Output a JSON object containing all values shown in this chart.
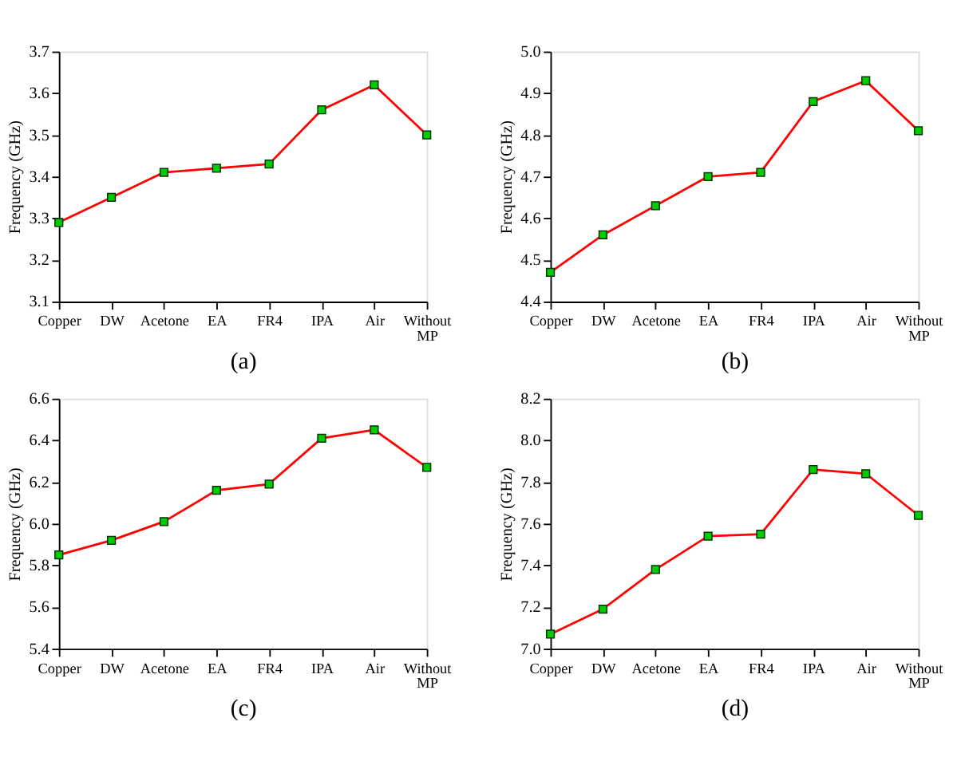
{
  "chart_data": [
    {
      "type": "line",
      "xlabel": "(a)",
      "ylabel": "Frequency (GHz)",
      "categories": [
        "Copper",
        "DW",
        "Acetone",
        "EA",
        "FR4",
        "IPA",
        "Air",
        "Without MP"
      ],
      "series": [
        {
          "color": "#ff0000",
          "values": [
            3.29,
            3.35,
            3.41,
            3.42,
            3.43,
            3.56,
            3.62,
            3.5
          ]
        }
      ],
      "ylim": [
        3.1,
        3.7
      ],
      "yticks": [
        3.1,
        3.2,
        3.3,
        3.4,
        3.5,
        3.6,
        3.7
      ],
      "marker": "square",
      "grid": false
    },
    {
      "type": "line",
      "xlabel": "(b)",
      "ylabel": "Frequency (GHz)",
      "categories": [
        "Copper",
        "DW",
        "Acetone",
        "EA",
        "FR4",
        "IPA",
        "Air",
        "Without MP"
      ],
      "series": [
        {
          "color": "#ff0000",
          "values": [
            4.47,
            4.56,
            4.63,
            4.7,
            4.71,
            4.88,
            4.93,
            4.81
          ]
        }
      ],
      "ylim": [
        4.4,
        5.0
      ],
      "yticks": [
        4.4,
        4.5,
        4.6,
        4.7,
        4.8,
        4.9,
        {
          "value": 5.0,
          "label": "5.0"
        }
      ],
      "marker": "square",
      "grid": false
    },
    {
      "type": "line",
      "xlabel": "(c)",
      "ylabel": "Frequency (GHz)",
      "categories": [
        "Copper",
        "DW",
        "Acetone",
        "EA",
        "FR4",
        "IPA",
        "Air",
        "Without MP"
      ],
      "series": [
        {
          "color": "#ff0000",
          "values": [
            5.85,
            5.92,
            6.01,
            6.16,
            6.19,
            6.41,
            6.45,
            6.27
          ]
        }
      ],
      "ylim": [
        5.4,
        6.6
      ],
      "yticks": [
        5.4,
        5.6,
        5.8,
        {
          "value": 6.0,
          "label": "6.0"
        },
        6.2,
        6.4,
        6.6
      ],
      "marker": "square",
      "grid": false
    },
    {
      "type": "line",
      "xlabel": "(d)",
      "ylabel": "Frequency (GHz)",
      "categories": [
        "Copper",
        "DW",
        "Acetone",
        "EA",
        "FR4",
        "IPA",
        "Air",
        "Without MP"
      ],
      "series": [
        {
          "color": "#ff0000",
          "values": [
            7.07,
            7.19,
            7.38,
            7.54,
            7.55,
            7.86,
            7.84,
            7.64
          ]
        }
      ],
      "ylim": [
        7.0,
        8.2
      ],
      "yticks": [
        {
          "value": 7.0,
          "label": "7.0"
        },
        7.2,
        7.4,
        7.6,
        7.8,
        {
          "value": 8.0,
          "label": "8.0"
        },
        8.2
      ],
      "marker": "square",
      "grid": false
    }
  ]
}
